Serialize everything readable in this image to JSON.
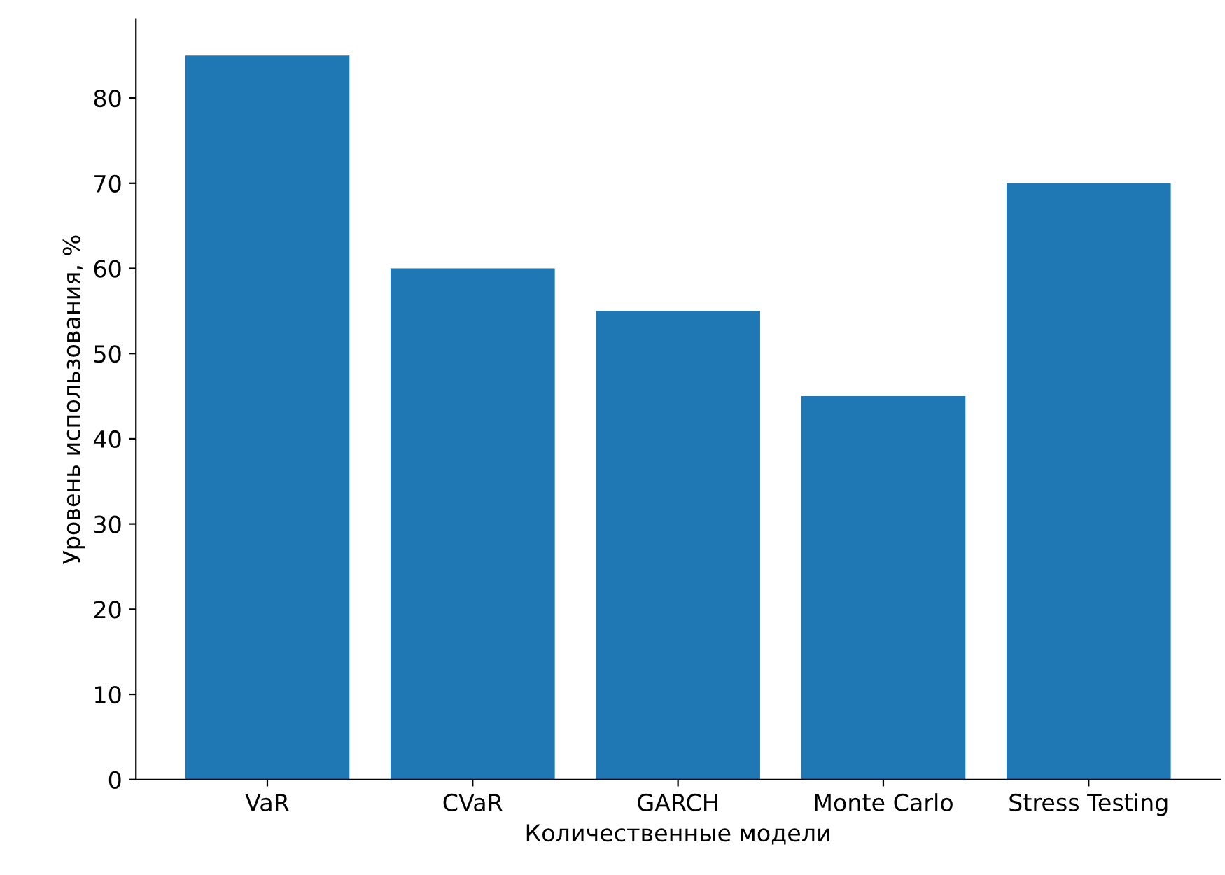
{
  "chart_data": {
    "type": "bar",
    "xlabel": "Количественные модели",
    "ylabel": "Уровень использования, %",
    "categories": [
      "VaR",
      "CVaR",
      "GARCH",
      "Monte Carlo",
      "Stress Testing"
    ],
    "values": [
      85,
      60,
      55,
      45,
      70
    ],
    "color": "#1f77b4",
    "ylim": [
      0,
      89.25
    ],
    "yticks": [
      0,
      10,
      20,
      30,
      40,
      50,
      60,
      70,
      80
    ],
    "grid": false
  }
}
